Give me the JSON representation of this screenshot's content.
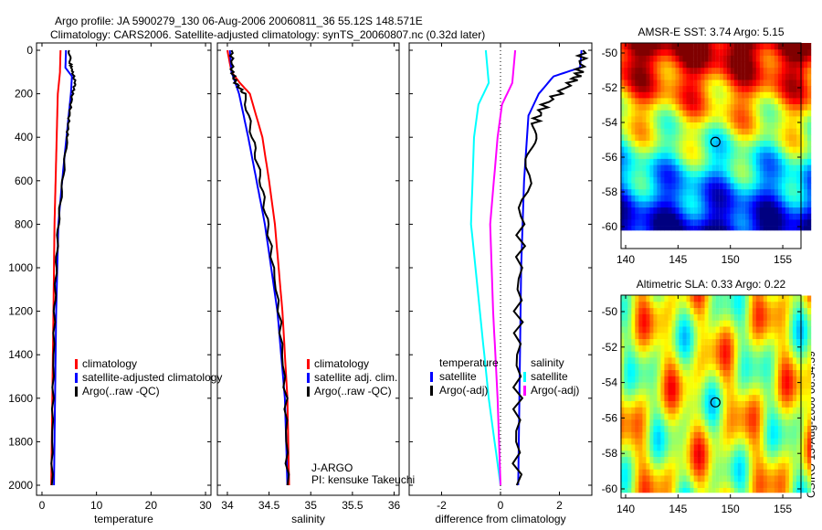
{
  "title_line1": "Argo profile: JA 5900279_130 06-Aug-2006 20060811_36 55.12S 148.571E",
  "title_line2": "Climatology: CARS2006. Satellite-adjusted climatology: synTS_20060807.nc (0.32d later)",
  "side_label": "CSIRO 13-Aug-2006 08:34:39",
  "colors": {
    "red": "#ff0000",
    "blue": "#0000ff",
    "black": "#000000",
    "cyan": "#00ffff",
    "magenta": "#ff00ff"
  },
  "chart_data": [
    {
      "type": "line",
      "xlabel": "temperature",
      "ylabel": "",
      "xlim": [
        -1,
        31
      ],
      "ylim": [
        2000,
        0
      ],
      "xticks": [
        "0",
        "10",
        "20",
        "30"
      ],
      "xtick_values": [
        0,
        10,
        20,
        30
      ],
      "yticks": [
        "0",
        "200",
        "400",
        "600",
        "800",
        "1000",
        "1200",
        "1400",
        "1600",
        "1800",
        "2000"
      ],
      "ytick_values": [
        0,
        200,
        400,
        600,
        800,
        1000,
        1200,
        1400,
        1600,
        1800,
        2000
      ],
      "legend": [
        "climatology",
        "satellite-adjusted climatology",
        "Argo(..raw -QC)"
      ],
      "series": [
        {
          "name": "climatology",
          "color": "red",
          "p": [
            0,
            100,
            200,
            400,
            600,
            800,
            1200,
            1600,
            2000
          ],
          "v": [
            3.4,
            3.3,
            2.9,
            2.7,
            2.5,
            2.3,
            2.1,
            1.9,
            1.7
          ]
        },
        {
          "name": "satellite-adjusted climatology",
          "color": "blue",
          "p": [
            0,
            80,
            120,
            200,
            400,
            600,
            800,
            1200,
            1600,
            2000
          ],
          "v": [
            4.4,
            4.3,
            5.5,
            5.3,
            4.5,
            3.7,
            3.0,
            2.6,
            2.4,
            2.2
          ]
        },
        {
          "name": "Argo(..raw -QC)",
          "color": "black",
          "p": [
            0,
            60,
            100,
            150,
            200,
            300,
            400,
            600,
            800,
            1000,
            1200,
            1600,
            2000
          ],
          "v": [
            5.0,
            5.2,
            5.6,
            6.1,
            5.6,
            5.0,
            4.6,
            3.8,
            3.0,
            2.6,
            2.3,
            2.0,
            1.8
          ]
        }
      ]
    },
    {
      "type": "line",
      "xlabel": "salinity",
      "xlim": [
        33.88,
        36.06
      ],
      "ylim": [
        2000,
        0
      ],
      "xticks": [
        "34",
        "34.5",
        "35",
        "35.5",
        "36"
      ],
      "xtick_values": [
        34,
        34.5,
        35,
        35.5,
        36
      ],
      "legend": [
        "climatology",
        "satellite adj. clim.",
        "Argo(..raw -QC)"
      ],
      "annotations": [
        "J-ARGO",
        "PI: kensuke Takeuchi"
      ],
      "series": [
        {
          "name": "climatology",
          "color": "red",
          "p": [
            0,
            100,
            150,
            200,
            400,
            600,
            800,
            1200,
            1600,
            2000
          ],
          "v": [
            34.0,
            34.05,
            34.15,
            34.27,
            34.42,
            34.5,
            34.57,
            34.66,
            34.72,
            34.74
          ]
        },
        {
          "name": "satellite adj. clim.",
          "color": "blue",
          "p": [
            0,
            100,
            200,
            400,
            600,
            800,
            1200,
            1600,
            2000
          ],
          "v": [
            34.03,
            34.05,
            34.14,
            34.25,
            34.35,
            34.45,
            34.6,
            34.69,
            34.72
          ]
        },
        {
          "name": "Argo(..raw -QC)",
          "color": "black",
          "p": [
            0,
            100,
            150,
            200,
            400,
            600,
            800,
            1200,
            1600,
            2000
          ],
          "v": [
            34.05,
            34.06,
            34.1,
            34.2,
            34.3,
            34.4,
            34.48,
            34.62,
            34.7,
            34.72
          ]
        }
      ]
    },
    {
      "type": "line",
      "xlabel": "difference from climatology",
      "xlim": [
        -3.1,
        3.1
      ],
      "ylim": [
        2000,
        0
      ],
      "xticks": [
        "-2",
        "0",
        "2"
      ],
      "xtick_values": [
        -2,
        0,
        2
      ],
      "legend_left": {
        "title": "temperature",
        "items": [
          "satellite",
          "Argo(-adj)"
        ]
      },
      "legend_right": {
        "title": "salinity",
        "items": [
          "satellite",
          "Argo(-adj)"
        ]
      },
      "series": [
        {
          "name": "temperature satellite",
          "color": "blue",
          "p": [
            0,
            80,
            120,
            200,
            300,
            600,
            1000,
            1500,
            2000
          ],
          "v": [
            2.75,
            2.7,
            1.8,
            1.3,
            0.95,
            0.8,
            0.7,
            0.65,
            0.6
          ]
        },
        {
          "name": "temperature Argo(-adj)",
          "color": "black",
          "p": [
            0,
            100,
            150,
            250,
            350,
            500,
            800,
            1200,
            1600,
            2000
          ],
          "v": [
            2.8,
            2.7,
            2.4,
            1.5,
            1.1,
            1.0,
            0.7,
            0.6,
            0.58,
            0.55
          ]
        },
        {
          "name": "salinity satellite",
          "color": "cyan",
          "p": [
            0,
            150,
            250,
            400,
            800,
            1200,
            1600,
            2000
          ],
          "v": [
            -0.5,
            -0.4,
            -0.75,
            -0.9,
            -1.0,
            -0.7,
            -0.4,
            0.0
          ]
        },
        {
          "name": "salinity Argo(-adj)",
          "color": "magenta",
          "p": [
            0,
            150,
            250,
            400,
            800,
            1200,
            1600,
            2000
          ],
          "v": [
            0.5,
            0.4,
            0.05,
            -0.1,
            -0.35,
            -0.25,
            -0.1,
            0.0
          ]
        }
      ]
    },
    {
      "type": "heatmap",
      "title": "AMSR-E SST: 3.74 Argo: 5.15",
      "xlim": [
        139.5,
        157.5
      ],
      "ylim": [
        -61.2,
        -49.1
      ],
      "xticks": [
        "140",
        "145",
        "150",
        "155"
      ],
      "yticks": [
        "-50",
        "-52",
        "-54",
        "-56",
        "-58",
        "-60"
      ],
      "marker": {
        "lon": 148.571,
        "lat": -55.12
      }
    },
    {
      "type": "heatmap",
      "title": "Altimetric SLA: 0.33 Argo: 0.22",
      "xlim": [
        139.5,
        157.5
      ],
      "ylim": [
        -61.2,
        -49.1
      ],
      "xticks": [
        "140",
        "145",
        "150",
        "155"
      ],
      "yticks": [
        "-50",
        "-52",
        "-54",
        "-56",
        "-58",
        "-60"
      ],
      "marker": {
        "lon": 148.571,
        "lat": -55.12
      }
    }
  ]
}
